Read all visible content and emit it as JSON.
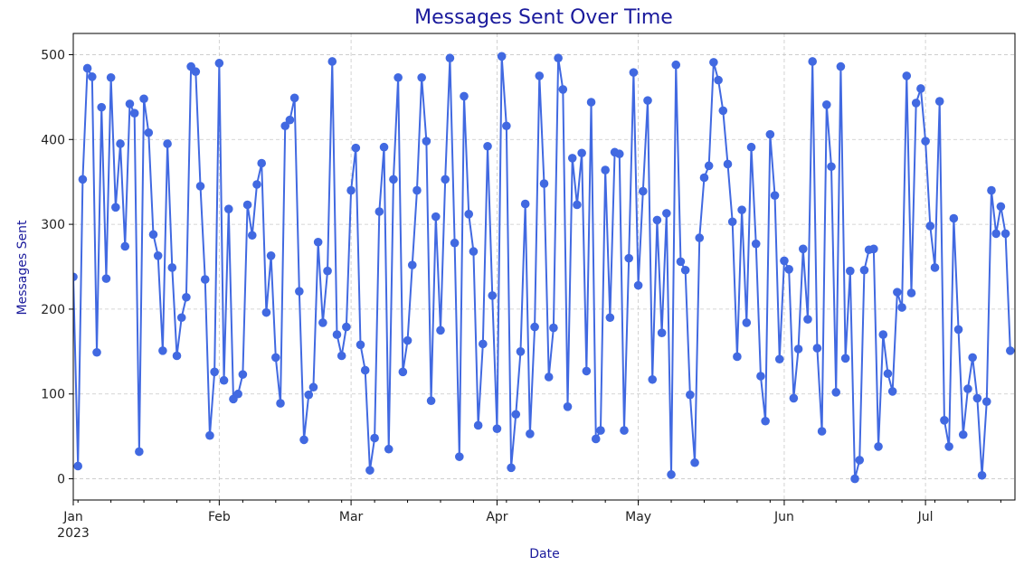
{
  "chart_data": {
    "type": "line",
    "title": "Messages Sent Over Time",
    "xlabel": "Date",
    "ylabel": "Messages Sent",
    "x_start": "2023-01-01",
    "x_end": "2023-07-20",
    "ylim": [
      -25,
      525
    ],
    "yticks": [
      0,
      100,
      200,
      300,
      400,
      500
    ],
    "xticks": [
      {
        "date": "2023-01-01",
        "label": "Jan",
        "sublabel": "2023"
      },
      {
        "date": "2023-02-01",
        "label": "Feb",
        "sublabel": ""
      },
      {
        "date": "2023-03-01",
        "label": "Mar",
        "sublabel": ""
      },
      {
        "date": "2023-04-01",
        "label": "Apr",
        "sublabel": ""
      },
      {
        "date": "2023-05-01",
        "label": "May",
        "sublabel": ""
      },
      {
        "date": "2023-06-01",
        "label": "Jun",
        "sublabel": ""
      },
      {
        "date": "2023-07-01",
        "label": "Jul",
        "sublabel": ""
      }
    ],
    "grid": true,
    "marker": "circle",
    "color": "#4169e1",
    "series": [
      {
        "values": [
          238,
          15,
          353,
          484,
          474,
          149,
          438,
          236,
          473,
          320,
          395,
          274,
          442,
          431,
          32,
          448,
          408,
          288,
          263,
          151,
          395,
          249,
          145,
          190,
          214,
          486,
          480,
          345,
          235,
          51,
          126,
          490,
          116,
          318,
          94,
          100,
          123,
          323,
          287,
          347,
          372,
          196,
          263,
          143,
          89,
          416,
          423,
          449,
          221,
          46,
          99,
          108,
          279,
          184,
          245,
          492,
          170,
          145,
          179,
          340,
          390,
          158,
          128,
          10,
          48,
          315,
          391,
          35,
          353,
          473,
          126,
          163,
          252,
          340,
          473,
          398,
          92,
          309,
          175,
          353,
          496,
          278,
          26,
          451,
          312,
          268,
          63,
          159,
          392,
          216,
          59,
          498,
          416,
          13,
          76,
          150,
          324,
          53,
          179,
          475,
          348,
          120,
          178,
          496,
          459,
          85,
          378,
          323,
          384,
          127,
          444,
          47,
          57,
          364,
          190,
          385,
          383,
          57,
          260,
          479,
          228,
          339,
          446,
          117,
          305,
          172,
          313,
          5,
          488,
          256,
          246,
          99,
          19,
          284,
          355,
          369,
          491,
          470,
          434,
          371,
          303,
          144,
          317,
          184,
          391,
          277,
          121,
          68,
          406,
          334,
          141,
          257,
          247,
          95,
          153,
          271,
          188,
          492,
          154,
          56,
          441,
          368,
          102,
          486,
          142,
          245,
          0,
          22,
          246,
          270,
          271,
          38,
          170,
          124,
          103,
          220,
          202,
          475,
          219,
          443,
          460,
          398,
          298,
          249,
          445,
          69,
          38,
          307,
          176,
          52,
          106,
          143,
          95,
          4,
          91,
          340,
          289,
          321,
          289,
          151
        ]
      }
    ]
  }
}
